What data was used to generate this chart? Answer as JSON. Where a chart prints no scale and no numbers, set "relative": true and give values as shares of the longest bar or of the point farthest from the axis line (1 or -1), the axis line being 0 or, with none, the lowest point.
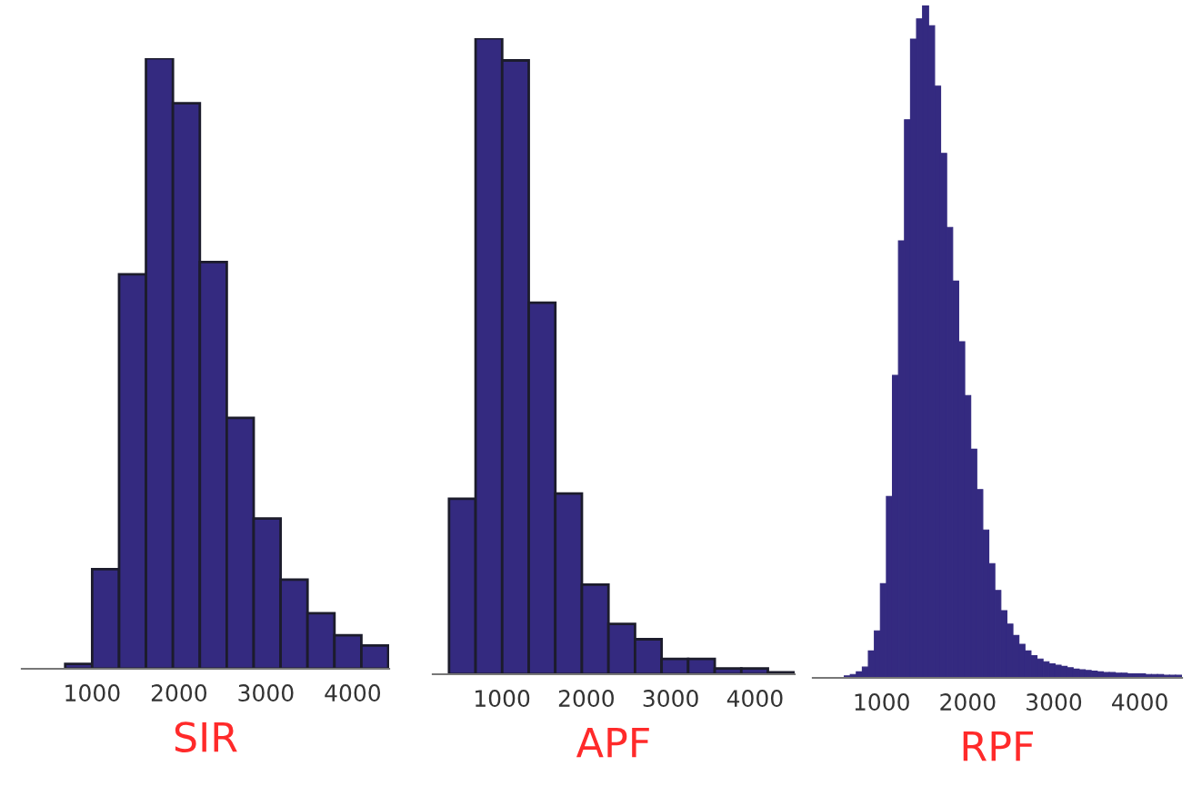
{
  "chart_data": [
    {
      "type": "bar",
      "relative": true,
      "xlabel": "SIR",
      "color": "#342a80",
      "xlim": [
        190,
        4420
      ],
      "xticks": [
        1000,
        2000,
        3000,
        4000
      ],
      "x": [
        845,
        1155,
        1465,
        1775,
        2085,
        2395,
        2705,
        3015,
        3325,
        3635,
        3945,
        4255
      ],
      "values": [
        0.008,
        0.163,
        0.646,
        1,
        0.926,
        0.666,
        0.411,
        0.246,
        0.146,
        0.091,
        0.055,
        0.038
      ]
    },
    {
      "type": "bar",
      "relative": true,
      "xlabel": "APF",
      "color": "#342a80",
      "xlim": [
        180,
        4470
      ],
      "xticks": [
        1000,
        2000,
        3000,
        4000
      ],
      "x": [
        530,
        845,
        1160,
        1475,
        1790,
        2105,
        2420,
        2735,
        3050,
        3365,
        3680,
        3995,
        4310
      ],
      "values": [
        0.276,
        1,
        0.965,
        0.584,
        0.284,
        0.141,
        0.079,
        0.055,
        0.024,
        0.024,
        0.009,
        0.009,
        0.003
      ]
    },
    {
      "type": "bar",
      "relative": true,
      "xlabel": "RPF",
      "color": "#342a80",
      "xlim": [
        200,
        4490
      ],
      "xticks": [
        1000,
        2000,
        3000,
        4000
      ],
      "x": [
        600,
        670,
        740,
        810,
        880,
        950,
        1020,
        1090,
        1160,
        1230,
        1300,
        1370,
        1440,
        1510,
        1580,
        1650,
        1720,
        1790,
        1860,
        1930,
        2000,
        2070,
        2140,
        2210,
        2280,
        2350,
        2420,
        2490,
        2560,
        2630,
        2700,
        2770,
        2840,
        2910,
        2980,
        3050,
        3120,
        3190,
        3260,
        3330,
        3400,
        3470,
        3540,
        3610,
        3680,
        3750,
        3820,
        3890,
        3960,
        4030,
        4100,
        4170,
        4240,
        4310,
        4380,
        4450
      ],
      "values": [
        0.003,
        0.005,
        0.009,
        0.016,
        0.04,
        0.07,
        0.14,
        0.27,
        0.45,
        0.65,
        0.83,
        0.95,
        0.98,
        1.0,
        0.97,
        0.88,
        0.78,
        0.67,
        0.59,
        0.5,
        0.42,
        0.34,
        0.28,
        0.22,
        0.17,
        0.13,
        0.1,
        0.08,
        0.063,
        0.05,
        0.04,
        0.033,
        0.028,
        0.024,
        0.021,
        0.019,
        0.017,
        0.015,
        0.013,
        0.012,
        0.011,
        0.01,
        0.009,
        0.008,
        0.008,
        0.007,
        0.007,
        0.006,
        0.006,
        0.006,
        0.005,
        0.005,
        0.005,
        0.004,
        0.004,
        0.004
      ]
    }
  ]
}
